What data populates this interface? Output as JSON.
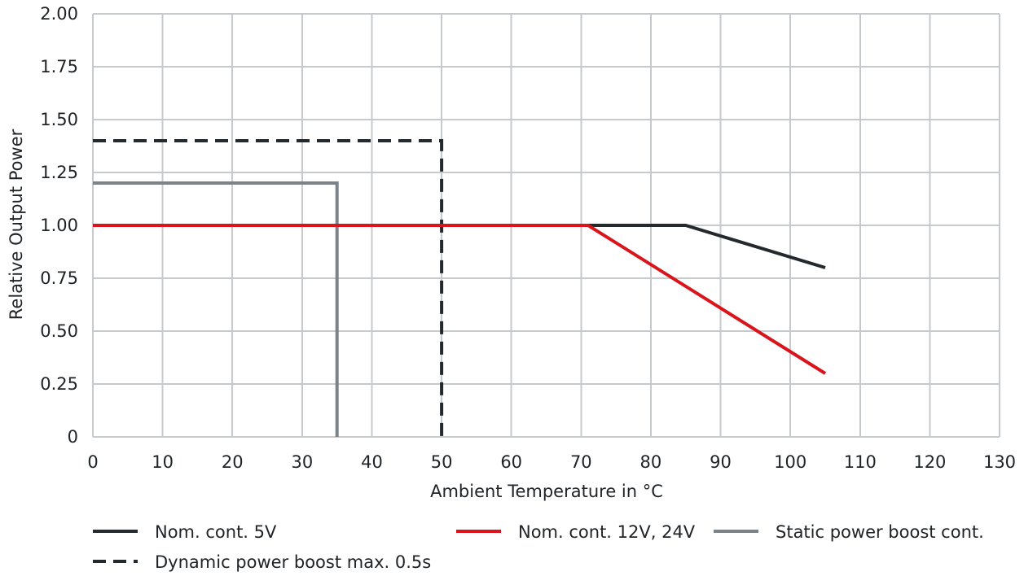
{
  "chart_data": {
    "type": "line",
    "title": "",
    "xlabel": "Ambient Temperature in °C",
    "ylabel": "Relative Output Power",
    "xlim": [
      0,
      130
    ],
    "ylim": [
      0,
      2
    ],
    "x_ticks": [
      0,
      10,
      20,
      30,
      40,
      50,
      60,
      70,
      80,
      90,
      100,
      110,
      120,
      130
    ],
    "x_tick_labels": [
      "0",
      "10",
      "20",
      "30",
      "40",
      "50",
      "60",
      "70",
      "80",
      "90",
      "100",
      "110",
      "120",
      "130"
    ],
    "y_ticks": [
      0,
      0.25,
      0.5,
      0.75,
      1.0,
      1.25,
      1.5,
      1.75,
      2.0
    ],
    "y_tick_labels": [
      "0",
      "0.25",
      "0.50",
      "0.75",
      "1.00",
      "1.25",
      "1.50",
      "1.75",
      "2.00"
    ],
    "grid": true,
    "legend_position": "bottom",
    "series": [
      {
        "name": "Nom. cont. 5V",
        "color": "#23292d",
        "dash": "solid",
        "points": [
          [
            0,
            1.0
          ],
          [
            71,
            1.0
          ],
          [
            85,
            1.0
          ],
          [
            105,
            0.8
          ]
        ]
      },
      {
        "name": "Nom. cont. 12V, 24V",
        "color": "#d9141b",
        "dash": "solid",
        "points": [
          [
            0,
            1.0
          ],
          [
            71,
            1.0
          ],
          [
            105,
            0.3
          ]
        ]
      },
      {
        "name": "Static power boost cont.",
        "color": "#7c8388",
        "dash": "solid",
        "points": [
          [
            0,
            1.2
          ],
          [
            35,
            1.2
          ],
          [
            35,
            0.0
          ]
        ]
      },
      {
        "name": "Dynamic power boost max. 0.5s",
        "color": "#23292d",
        "dash": "dashed",
        "points": [
          [
            0,
            1.4
          ],
          [
            50,
            1.4
          ],
          [
            50,
            0.0
          ]
        ]
      }
    ]
  }
}
